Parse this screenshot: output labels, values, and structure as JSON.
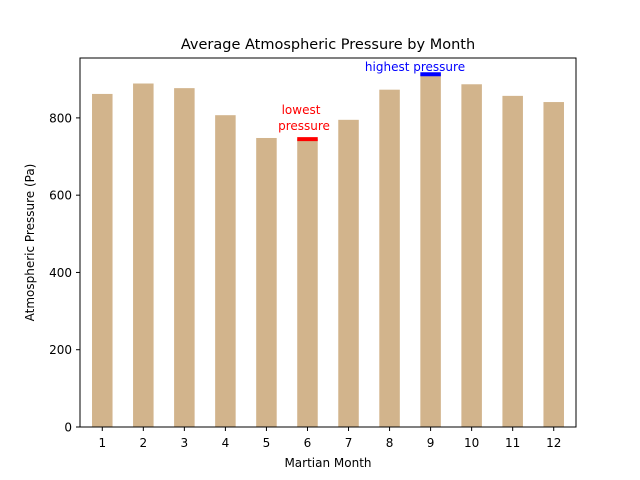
{
  "chart_data": {
    "type": "bar",
    "title": "Average Atmospheric Pressure by Month",
    "xlabel": "Martian Month",
    "ylabel": "Atmospheric Pressure (Pa)",
    "categories": [
      "1",
      "2",
      "3",
      "4",
      "5",
      "6",
      "7",
      "8",
      "9",
      "10",
      "11",
      "12"
    ],
    "values": [
      862,
      889,
      877,
      807,
      748,
      745,
      795,
      873,
      913,
      887,
      857,
      841
    ],
    "ylim": [
      0,
      955
    ],
    "yticks": [
      0,
      200,
      400,
      600,
      800
    ],
    "grid": false,
    "colors": {
      "bar": "#d2b48c",
      "lowest": "#ff0000",
      "highest": "#0000ff"
    },
    "annotations": {
      "lowest": {
        "month": "6",
        "value": 745,
        "label_line1": "lowest",
        "label_line2": "pressure"
      },
      "highest": {
        "month": "9",
        "value": 913,
        "label": "highest pressure"
      }
    }
  }
}
